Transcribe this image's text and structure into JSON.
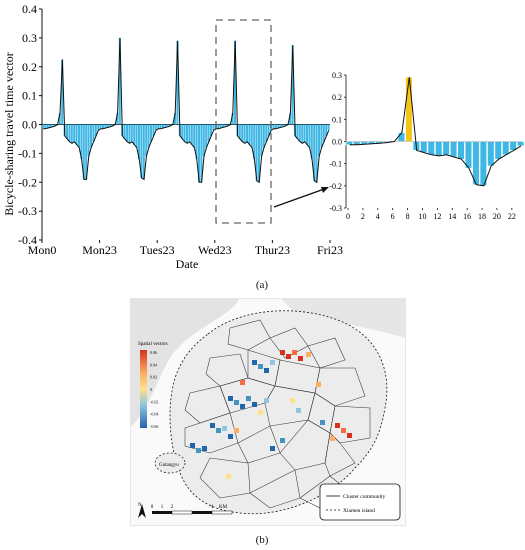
{
  "caption_a": "(a)",
  "caption_b": "(b)",
  "chart_data": [
    {
      "type": "bar",
      "xlabel": "Date",
      "ylabel": "Bicycle-sharing travel time vector",
      "ylim": [
        -0.4,
        0.4
      ],
      "yticks": [
        "0.4",
        "0.3",
        "0.2",
        "0.1",
        "0.0",
        "-0.1",
        "-0.2",
        "-0.3",
        "-0.4"
      ],
      "x_tick_labels": [
        "Mon0",
        "Mon23",
        "Tues23",
        "Wed23",
        "Thur23",
        "Fri23"
      ],
      "grid": false,
      "days": [
        {
          "values": [
            -0.015,
            -0.015,
            -0.012,
            -0.01,
            -0.008,
            -0.005,
            0.0,
            0.04,
            0.225,
            -0.04,
            -0.05,
            -0.06,
            -0.065,
            -0.06,
            -0.07,
            -0.08,
            -0.12,
            -0.19,
            -0.19,
            -0.11,
            -0.08,
            -0.06,
            -0.04,
            -0.02
          ]
        },
        {
          "values": [
            -0.015,
            -0.015,
            -0.012,
            -0.01,
            -0.008,
            -0.005,
            0.0,
            0.04,
            0.3,
            -0.04,
            -0.05,
            -0.06,
            -0.065,
            -0.06,
            -0.07,
            -0.08,
            -0.12,
            -0.185,
            -0.19,
            -0.11,
            -0.08,
            -0.06,
            -0.04,
            -0.02
          ]
        },
        {
          "values": [
            -0.015,
            -0.015,
            -0.012,
            -0.01,
            -0.008,
            -0.005,
            0.0,
            0.04,
            0.29,
            -0.04,
            -0.05,
            -0.06,
            -0.065,
            -0.06,
            -0.07,
            -0.08,
            -0.12,
            -0.2,
            -0.2,
            -0.11,
            -0.08,
            -0.06,
            -0.04,
            -0.02
          ]
        },
        {
          "values": [
            -0.015,
            -0.015,
            -0.012,
            -0.01,
            -0.008,
            -0.005,
            0.0,
            0.04,
            0.29,
            -0.04,
            -0.05,
            -0.06,
            -0.065,
            -0.06,
            -0.07,
            -0.08,
            -0.12,
            -0.195,
            -0.2,
            -0.11,
            -0.08,
            -0.06,
            -0.04,
            -0.02
          ]
        },
        {
          "values": [
            -0.015,
            -0.015,
            -0.012,
            -0.01,
            -0.008,
            -0.005,
            0.0,
            0.04,
            0.275,
            -0.04,
            -0.05,
            -0.06,
            -0.065,
            -0.06,
            -0.07,
            -0.08,
            -0.12,
            -0.195,
            -0.2,
            -0.11,
            -0.08,
            -0.06,
            -0.04,
            -0.02
          ]
        }
      ],
      "bar_color": "#3fb8e6",
      "line_color": "#111111"
    },
    {
      "type": "bar",
      "xlabel": "",
      "ylabel": "",
      "ylim": [
        -0.3,
        0.3
      ],
      "yticks": [
        "0.3",
        "0.2",
        "0.1",
        "0.0",
        "-0.1",
        "-0.2",
        "-0.3"
      ],
      "x": [
        0,
        1,
        2,
        3,
        4,
        5,
        6,
        7,
        8,
        9,
        10,
        11,
        12,
        13,
        14,
        15,
        16,
        17,
        18,
        19,
        20,
        21,
        22,
        23
      ],
      "x_tick_labels": [
        "0",
        "2",
        "4",
        "6",
        "8",
        "10",
        "12",
        "14",
        "16",
        "18",
        "20",
        "22"
      ],
      "values": [
        -0.015,
        -0.015,
        -0.012,
        -0.01,
        -0.008,
        -0.005,
        0.0,
        0.04,
        0.29,
        -0.04,
        -0.05,
        -0.06,
        -0.065,
        -0.06,
        -0.07,
        -0.08,
        -0.12,
        -0.195,
        -0.2,
        -0.11,
        -0.08,
        -0.06,
        -0.04,
        -0.02
      ],
      "highlight_hour": 8,
      "highlight_color": "#f5c518",
      "bar_color": "#3fb8e6"
    }
  ],
  "map": {
    "legend_title": "Spatial vectors",
    "legend_ticks": [
      "0.06",
      "0.04",
      "0.02",
      "0",
      "-0.02",
      "-0.04",
      "-0.06"
    ],
    "label_island": "Gulangyu",
    "legend_items": [
      "Cluster community",
      "Xiamen island"
    ],
    "scale_labels": [
      "0",
      "1",
      "2",
      "4"
    ],
    "scale_unit": "KM",
    "north": "N",
    "colors": {
      "high": "#d7301f",
      "mid": "#fee08b",
      "low": "#2166ac",
      "land": "#e6e6e6",
      "water": "#fafafa"
    }
  }
}
